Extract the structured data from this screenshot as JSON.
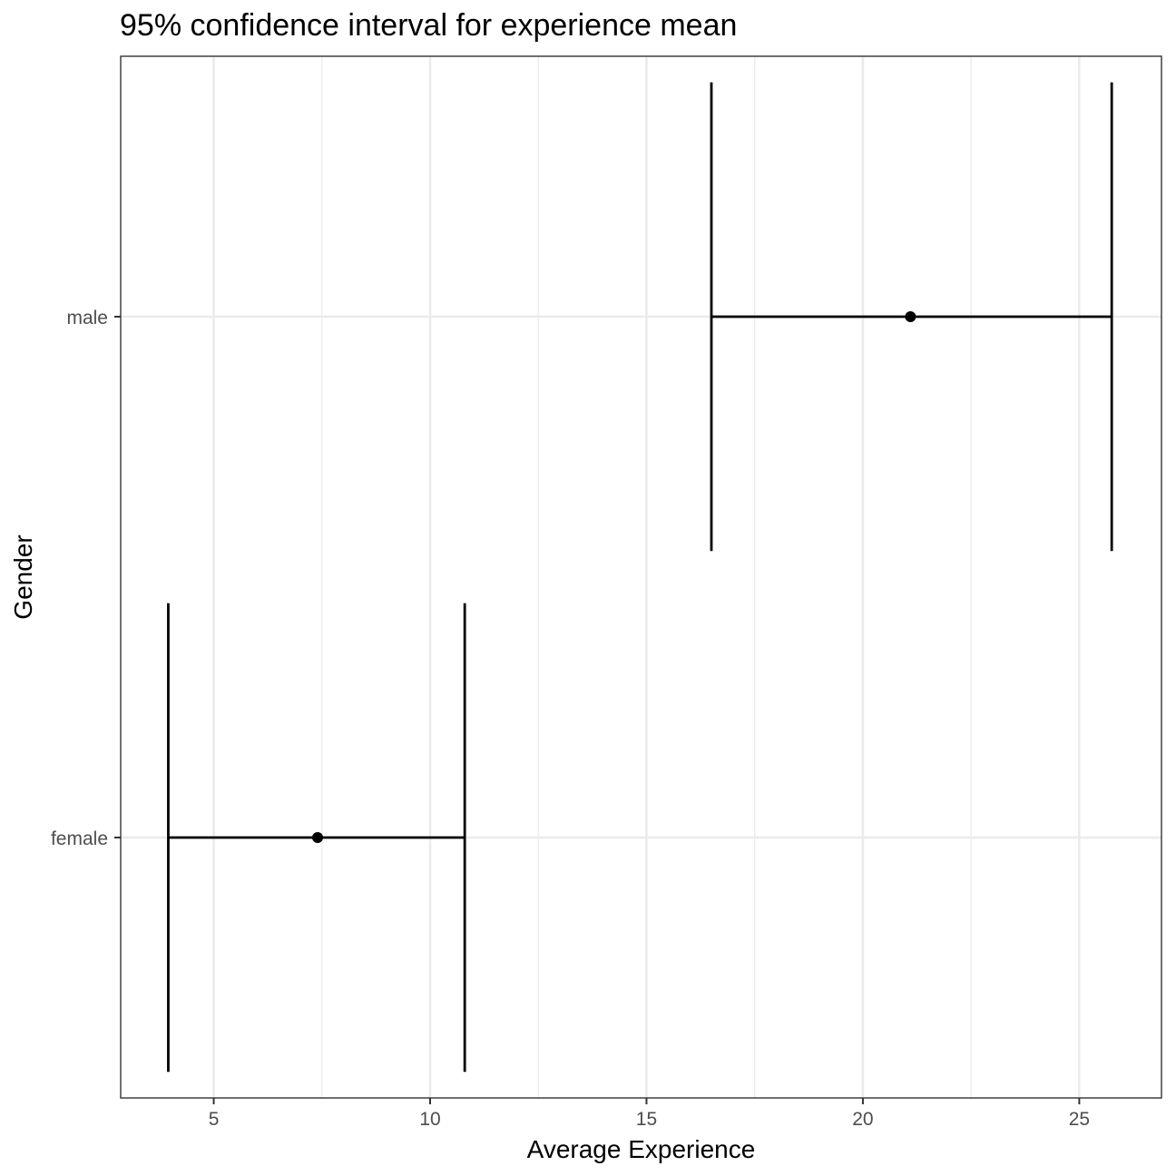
{
  "chart_data": {
    "type": "errorbar",
    "title": "95% confidence interval for experience mean",
    "xlabel": "Average Experience",
    "ylabel": "Gender",
    "xlim": [
      2.85,
      26.9
    ],
    "x_ticks": [
      5,
      10,
      15,
      20,
      25
    ],
    "x_minor_ticks": [
      7.5,
      12.5,
      17.5,
      22.5
    ],
    "categories": [
      "female",
      "male"
    ],
    "points": [
      {
        "category": "female",
        "mean": 7.4,
        "lower": 3.95,
        "upper": 10.8
      },
      {
        "category": "male",
        "mean": 21.1,
        "lower": 16.5,
        "upper": 25.75
      }
    ],
    "grid": true,
    "legend": "none"
  }
}
